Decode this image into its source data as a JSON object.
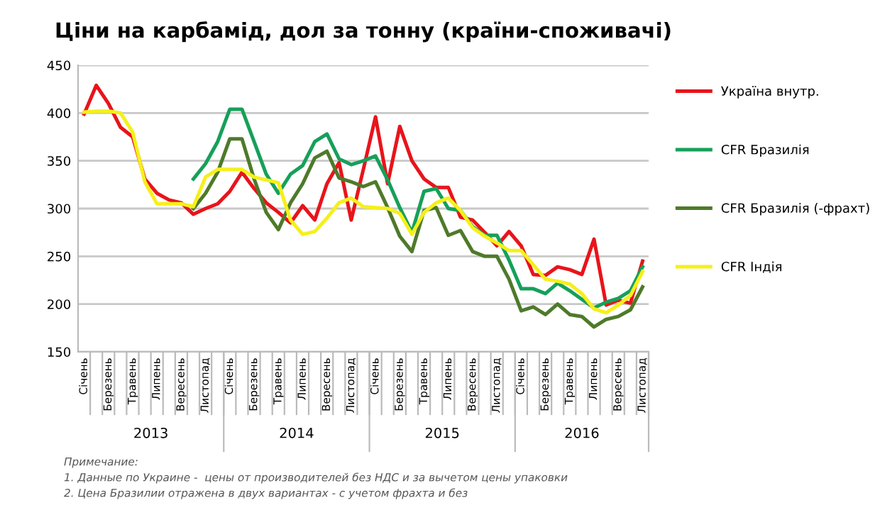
{
  "chart_data": {
    "type": "line",
    "title": "Ціни на карбамід, дол за тонну (країни-споживачі)",
    "categories": [
      "Січень",
      null,
      "Березень",
      null,
      "Травень",
      null,
      "Липень",
      null,
      "Вересень",
      null,
      "Листопад",
      null,
      "Січень",
      null,
      "Березень",
      null,
      "Травень",
      null,
      "Липень",
      null,
      "Вересень",
      null,
      "Листопад",
      null,
      "Січень",
      null,
      "Березень",
      null,
      "Травень",
      null,
      "Липень",
      null,
      "Вересень",
      null,
      "Листопад",
      null,
      "Січень",
      null,
      "Березень",
      null,
      "Травень",
      null,
      "Липень",
      null,
      "Вересень",
      null,
      "Листопад"
    ],
    "series": [
      {
        "name": "Україна внутр.",
        "color": "#e8141b",
        "values": [
          399,
          429,
          410,
          385,
          375,
          331,
          316,
          309,
          306,
          294,
          300,
          305,
          318,
          338,
          321,
          306,
          296,
          285,
          303,
          288,
          326,
          348,
          288,
          341,
          396,
          326,
          386,
          350,
          331,
          322,
          322,
          291,
          288,
          275,
          261,
          276,
          261,
          231,
          230,
          239,
          236,
          231,
          268,
          199,
          204,
          201,
          245
        ]
      },
      {
        "name": "CFR Бразилія",
        "color": "#16a05a",
        "values": [
          null,
          null,
          null,
          null,
          null,
          null,
          null,
          null,
          null,
          331,
          347,
          370,
          404,
          404,
          370,
          336,
          316,
          336,
          345,
          370,
          378,
          352,
          346,
          350,
          355,
          330,
          301,
          275,
          318,
          321,
          300,
          298,
          281,
          272,
          272,
          246,
          216,
          216,
          211,
          222,
          214,
          205,
          196,
          202,
          206,
          214,
          239
        ]
      },
      {
        "name": "CFR Бразилія (-фрахт)",
        "color": "#4e7a2a",
        "values": [
          null,
          null,
          null,
          null,
          null,
          null,
          null,
          null,
          null,
          300,
          316,
          338,
          373,
          373,
          331,
          296,
          278,
          306,
          326,
          353,
          360,
          332,
          328,
          323,
          328,
          301,
          271,
          255,
          298,
          301,
          272,
          277,
          255,
          250,
          250,
          226,
          193,
          197,
          189,
          200,
          189,
          187,
          176,
          184,
          187,
          194,
          218
        ]
      },
      {
        "name": "CFR Індія",
        "color": "#f5f01a",
        "values": [
          401,
          402,
          402,
          400,
          380,
          328,
          305,
          305,
          305,
          302,
          333,
          341,
          341,
          341,
          333,
          330,
          327,
          288,
          273,
          276,
          290,
          306,
          311,
          302,
          301,
          300,
          295,
          273,
          296,
          306,
          311,
          298,
          280,
          271,
          264,
          256,
          256,
          241,
          226,
          224,
          221,
          211,
          195,
          191,
          199,
          209,
          234
        ]
      }
    ],
    "ylim": [
      150,
      450
    ],
    "yticks": [
      150,
      200,
      250,
      300,
      350,
      400,
      450
    ],
    "grid": "y",
    "legend": "right",
    "marker": "none",
    "line_style": "solid",
    "annotations": [
      "2013",
      "2014",
      "2015",
      "2016",
      "Примечание:",
      "1. Данные по Украине -  цены от производителей без НДС и за вычетом цены упаковки",
      "2. Цена Бразилии отражена в двух вариантах - с учетом фрахта и без"
    ]
  }
}
